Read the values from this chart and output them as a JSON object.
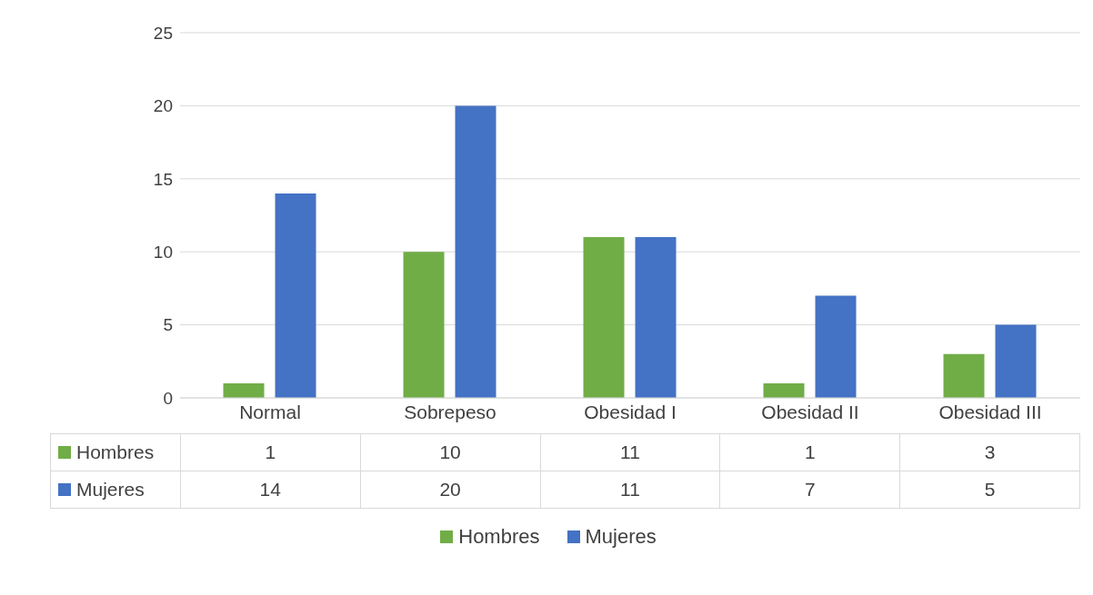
{
  "chart_data": {
    "type": "bar",
    "categories": [
      "Normal",
      "Sobrepeso",
      "Obesidad I",
      "Obesidad II",
      "Obesidad III"
    ],
    "series": [
      {
        "name": "Hombres",
        "color": "#70ad47",
        "values": [
          1,
          10,
          11,
          1,
          3
        ]
      },
      {
        "name": "Mujeres",
        "color": "#4472c4",
        "values": [
          14,
          20,
          11,
          7,
          5
        ]
      }
    ],
    "ylim": [
      0,
      25
    ],
    "yticks": [
      0,
      5,
      10,
      15,
      20,
      25
    ],
    "grid": "y",
    "legend": "bottom",
    "data_labels": true
  }
}
